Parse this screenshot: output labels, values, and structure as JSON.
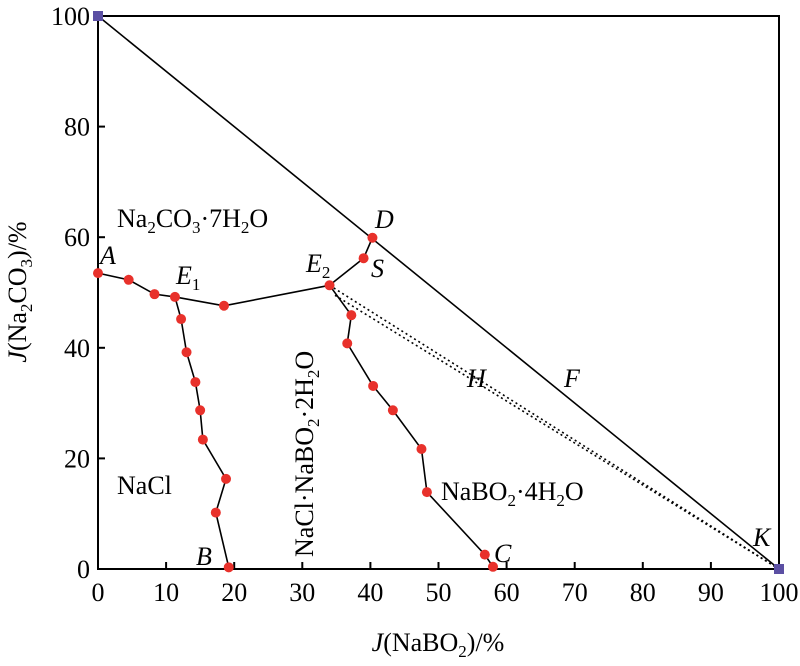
{
  "chart_data": {
    "type": "scatter",
    "title": "",
    "xlabel_var": "J",
    "xlabel_rest": "(NaBO",
    "xlabel_sub": "2",
    "xlabel_tail": ")/%",
    "ylabel_var": "J",
    "ylabel_rest": "(Na",
    "ylabel_sub": "2",
    "ylabel_mid": "CO",
    "ylabel_sub2": "3",
    "ylabel_tail": ")/%",
    "xlim": [
      0,
      100
    ],
    "ylim": [
      0,
      100
    ],
    "xticks": [
      "0",
      "10",
      "20",
      "30",
      "40",
      "50",
      "60",
      "70",
      "80",
      "90",
      "100"
    ],
    "yticks": [
      "0",
      "20",
      "40",
      "60",
      "80",
      "100"
    ],
    "grid": false,
    "point_color": "#e8312b",
    "corner_color": "#5b4fa3",
    "curves": [
      {
        "name": "A-E1",
        "points": [
          [
            0,
            53.5
          ],
          [
            4.5,
            52.3
          ],
          [
            8.3,
            49.7
          ],
          [
            11.3,
            49.2
          ]
        ]
      },
      {
        "name": "E1-E2",
        "points": [
          [
            11.3,
            49.2
          ],
          [
            18.5,
            47.6
          ],
          [
            34,
            51.3
          ]
        ]
      },
      {
        "name": "E1-B",
        "points": [
          [
            11.3,
            49.2
          ],
          [
            12.2,
            45.2
          ],
          [
            13,
            39.2
          ],
          [
            14.3,
            33.8
          ],
          [
            15,
            28.7
          ],
          [
            15.4,
            23.4
          ],
          [
            18.8,
            16.3
          ],
          [
            17.3,
            10.2
          ],
          [
            19.2,
            0.3
          ]
        ]
      },
      {
        "name": "E2-D",
        "points": [
          [
            34,
            51.3
          ],
          [
            39,
            56.2
          ],
          [
            40.3,
            59.9
          ]
        ]
      },
      {
        "name": "E2-C",
        "points": [
          [
            34,
            51.3
          ],
          [
            37.2,
            45.9
          ],
          [
            36.6,
            40.8
          ],
          [
            40.4,
            33.1
          ],
          [
            43.3,
            28.7
          ],
          [
            47.5,
            21.7
          ],
          [
            48.3,
            13.9
          ],
          [
            56.8,
            2.6
          ],
          [
            58,
            0.4
          ]
        ]
      }
    ],
    "markers": [
      [
        0,
        53.5
      ],
      [
        4.5,
        52.3
      ],
      [
        8.3,
        49.7
      ],
      [
        11.3,
        49.2
      ],
      [
        18.5,
        47.6
      ],
      [
        34,
        51.3
      ],
      [
        12.2,
        45.2
      ],
      [
        13,
        39.2
      ],
      [
        14.3,
        33.8
      ],
      [
        15,
        28.7
      ],
      [
        15.4,
        23.4
      ],
      [
        18.8,
        16.3
      ],
      [
        17.3,
        10.2
      ],
      [
        19.2,
        0.3
      ],
      [
        39,
        56.2
      ],
      [
        40.3,
        59.9
      ],
      [
        37.2,
        45.9
      ],
      [
        36.6,
        40.8
      ],
      [
        40.4,
        33.1
      ],
      [
        43.3,
        28.7
      ],
      [
        47.5,
        21.7
      ],
      [
        48.3,
        13.9
      ],
      [
        56.8,
        2.6
      ],
      [
        58,
        0.4
      ]
    ],
    "tie_line": {
      "from": [
        0,
        100
      ],
      "to": [
        100,
        0
      ]
    },
    "corner_markers": [
      [
        0,
        100
      ],
      [
        100,
        0
      ]
    ],
    "dotted_lines": [
      {
        "from": [
          34,
          51.3
        ],
        "to": [
          100,
          0
        ]
      },
      {
        "from": [
          34.8,
          49.5
        ],
        "to": [
          100,
          0
        ]
      }
    ],
    "region_labels": {
      "na2co3": {
        "a": "Na",
        "a_sub": "2",
        "b": "CO",
        "b_sub": "3",
        "c": "·7H",
        "c_sub": "2",
        "d": "O"
      },
      "nacl": "NaCl",
      "double_salt": {
        "a": "NaCl·NaBO",
        "a_sub": "2",
        "b": "·2H",
        "b_sub": "2",
        "c": "O"
      },
      "nabo2": {
        "a": "NaBO",
        "a_sub": "2",
        "b": "·4H",
        "b_sub": "2",
        "c": "O"
      }
    },
    "point_labels": {
      "A": "A",
      "B": "B",
      "C": "C",
      "D": "D",
      "E1": "E",
      "E1_sub": "1",
      "E2": "E",
      "E2_sub": "2",
      "S": "S",
      "H": "H",
      "F": "F",
      "K": "K"
    }
  }
}
